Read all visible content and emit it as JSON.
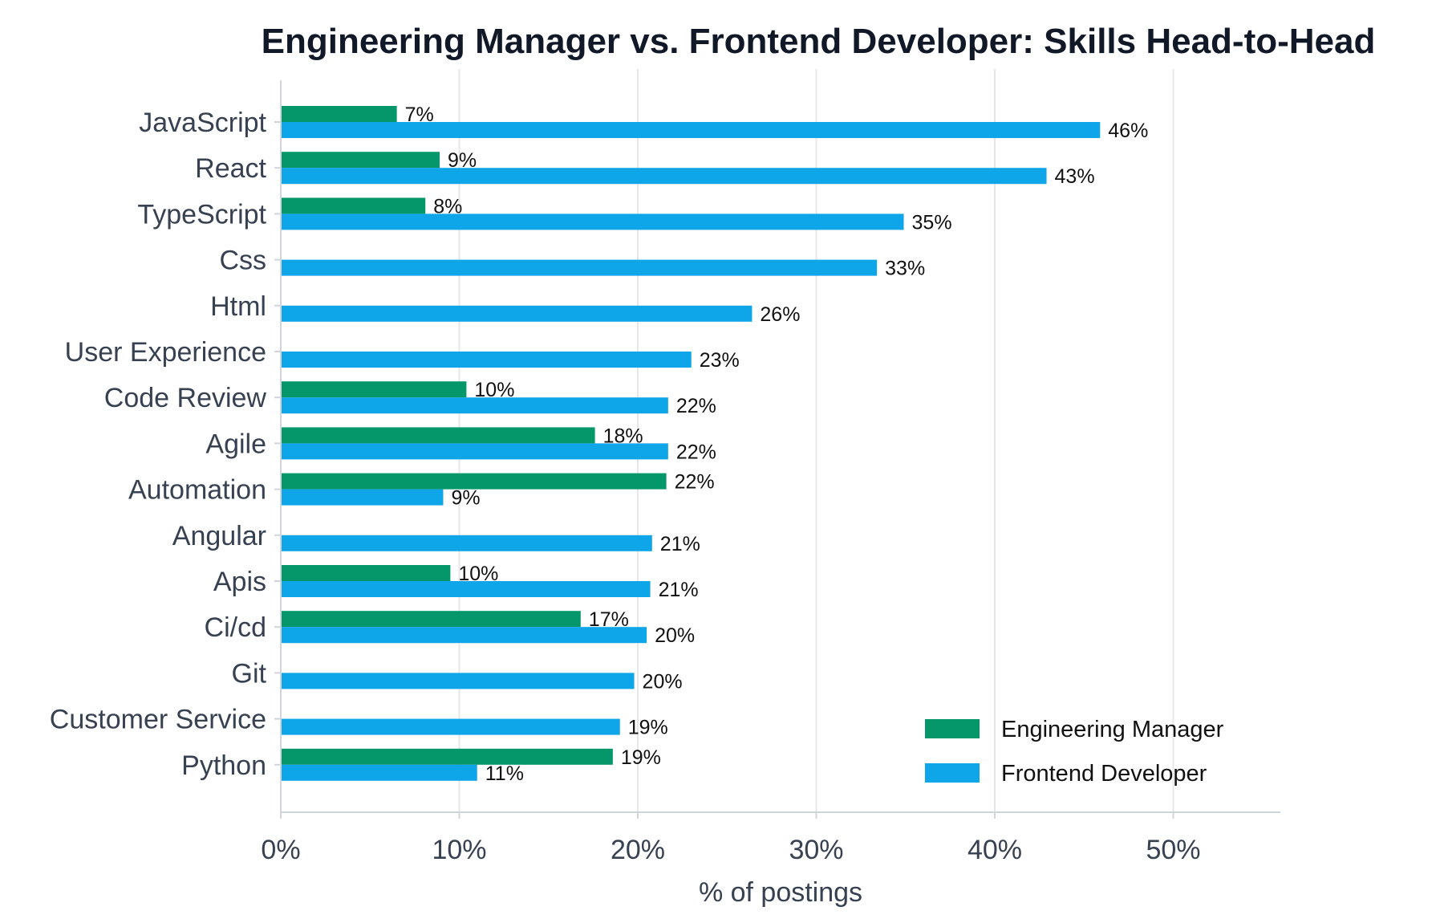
{
  "chart_data": {
    "type": "bar",
    "orientation": "horizontal",
    "title": "Engineering Manager vs. Frontend Developer: Skills Head-to-Head",
    "xlabel": "% of postings",
    "ylabel": "",
    "xlim": [
      0,
      56
    ],
    "xticks": [
      0,
      10,
      20,
      30,
      40,
      50
    ],
    "xtick_labels": [
      "0%",
      "10%",
      "20%",
      "30%",
      "40%",
      "50%"
    ],
    "grid": "vertical",
    "legend_position": "bottom-right",
    "categories": [
      "JavaScript",
      "React",
      "TypeScript",
      "Css",
      "Html",
      "User Experience",
      "Code Review",
      "Agile",
      "Automation",
      "Angular",
      "Apis",
      "Ci/cd",
      "Git",
      "Customer Service",
      "Python"
    ],
    "series": [
      {
        "name": "Engineering Manager",
        "color": "#059669",
        "values": [
          6.5,
          8.9,
          8.1,
          0,
          0,
          0,
          10.4,
          17.6,
          21.6,
          0,
          9.5,
          16.8,
          0,
          0,
          18.6
        ],
        "labels": [
          "7%",
          "9%",
          "8%",
          "",
          "",
          "",
          "10%",
          "18%",
          "22%",
          "",
          "10%",
          "17%",
          "",
          "",
          "19%"
        ]
      },
      {
        "name": "Frontend Developer",
        "color": "#0ea5e9",
        "values": [
          45.9,
          42.9,
          34.9,
          33.4,
          26.4,
          23.0,
          21.7,
          21.7,
          9.1,
          20.8,
          20.7,
          20.5,
          19.8,
          19.0,
          11.0
        ],
        "labels": [
          "46%",
          "43%",
          "35%",
          "33%",
          "26%",
          "23%",
          "22%",
          "22%",
          "9%",
          "21%",
          "21%",
          "20%",
          "20%",
          "19%",
          "11%"
        ]
      }
    ]
  }
}
